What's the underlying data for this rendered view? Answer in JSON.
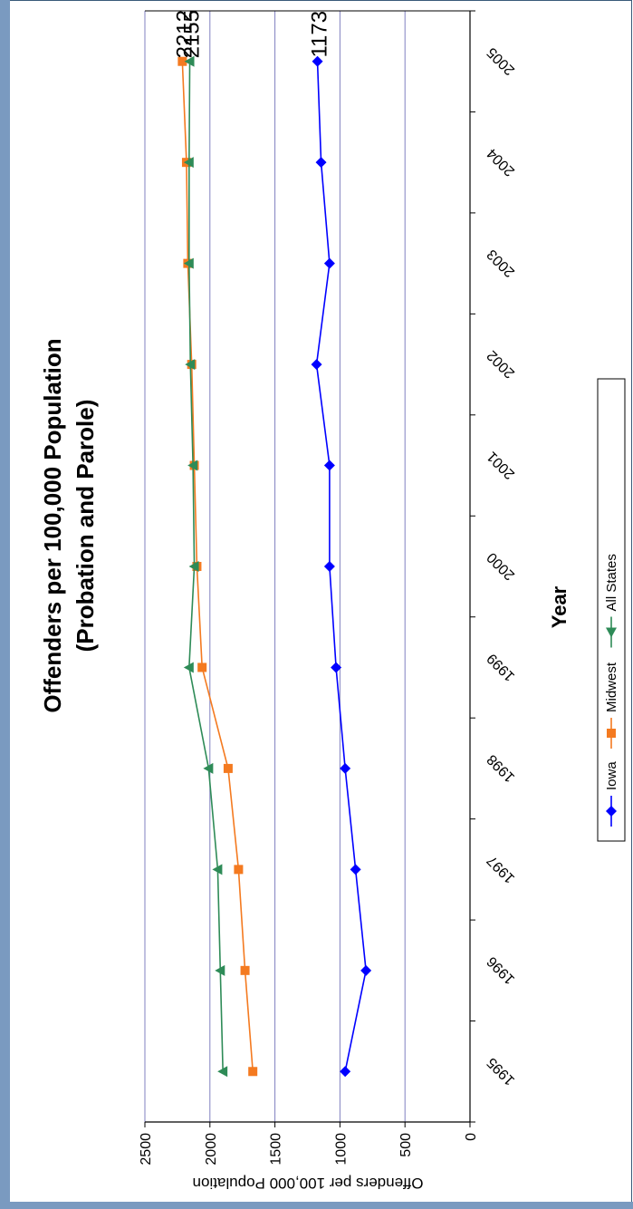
{
  "chart_data": {
    "type": "line",
    "title": "Offenders per 100,000 Population",
    "subtitle": "(Probation and Parole)",
    "xlabel": "Year",
    "ylabel": "Offenders per 100,000 Population",
    "categories": [
      "1995",
      "1996",
      "1997",
      "1998",
      "1999",
      "2000",
      "2001",
      "2002",
      "2003",
      "2004",
      "2005"
    ],
    "ylim": [
      0,
      2500
    ],
    "yticks": [
      "0",
      "500",
      "1000",
      "1500",
      "2000",
      "2500"
    ],
    "grid": true,
    "legend_position": "bottom",
    "orientation": "rotated-90",
    "series": [
      {
        "name": "Iowa",
        "color": "#0000ff",
        "marker": "diamond",
        "values": [
          960,
          800,
          880,
          960,
          1030,
          1080,
          1080,
          1180,
          1080,
          1145,
          1173
        ]
      },
      {
        "name": "Midwest",
        "color": "#f47a20",
        "marker": "square",
        "values": [
          1670,
          1730,
          1780,
          1860,
          2060,
          2100,
          2120,
          2140,
          2170,
          2180,
          2212
        ]
      },
      {
        "name": "All States",
        "color": "#2e8b57",
        "marker": "triangle",
        "values": [
          1900,
          1920,
          1940,
          2010,
          2160,
          2120,
          2130,
          2150,
          2160,
          2160,
          2155
        ]
      }
    ],
    "data_labels": [
      "2212",
      "2155",
      "1173"
    ],
    "colors": {
      "gridline": "#8080c0",
      "frame": "#4a6a8a",
      "axis": "#000000"
    }
  }
}
